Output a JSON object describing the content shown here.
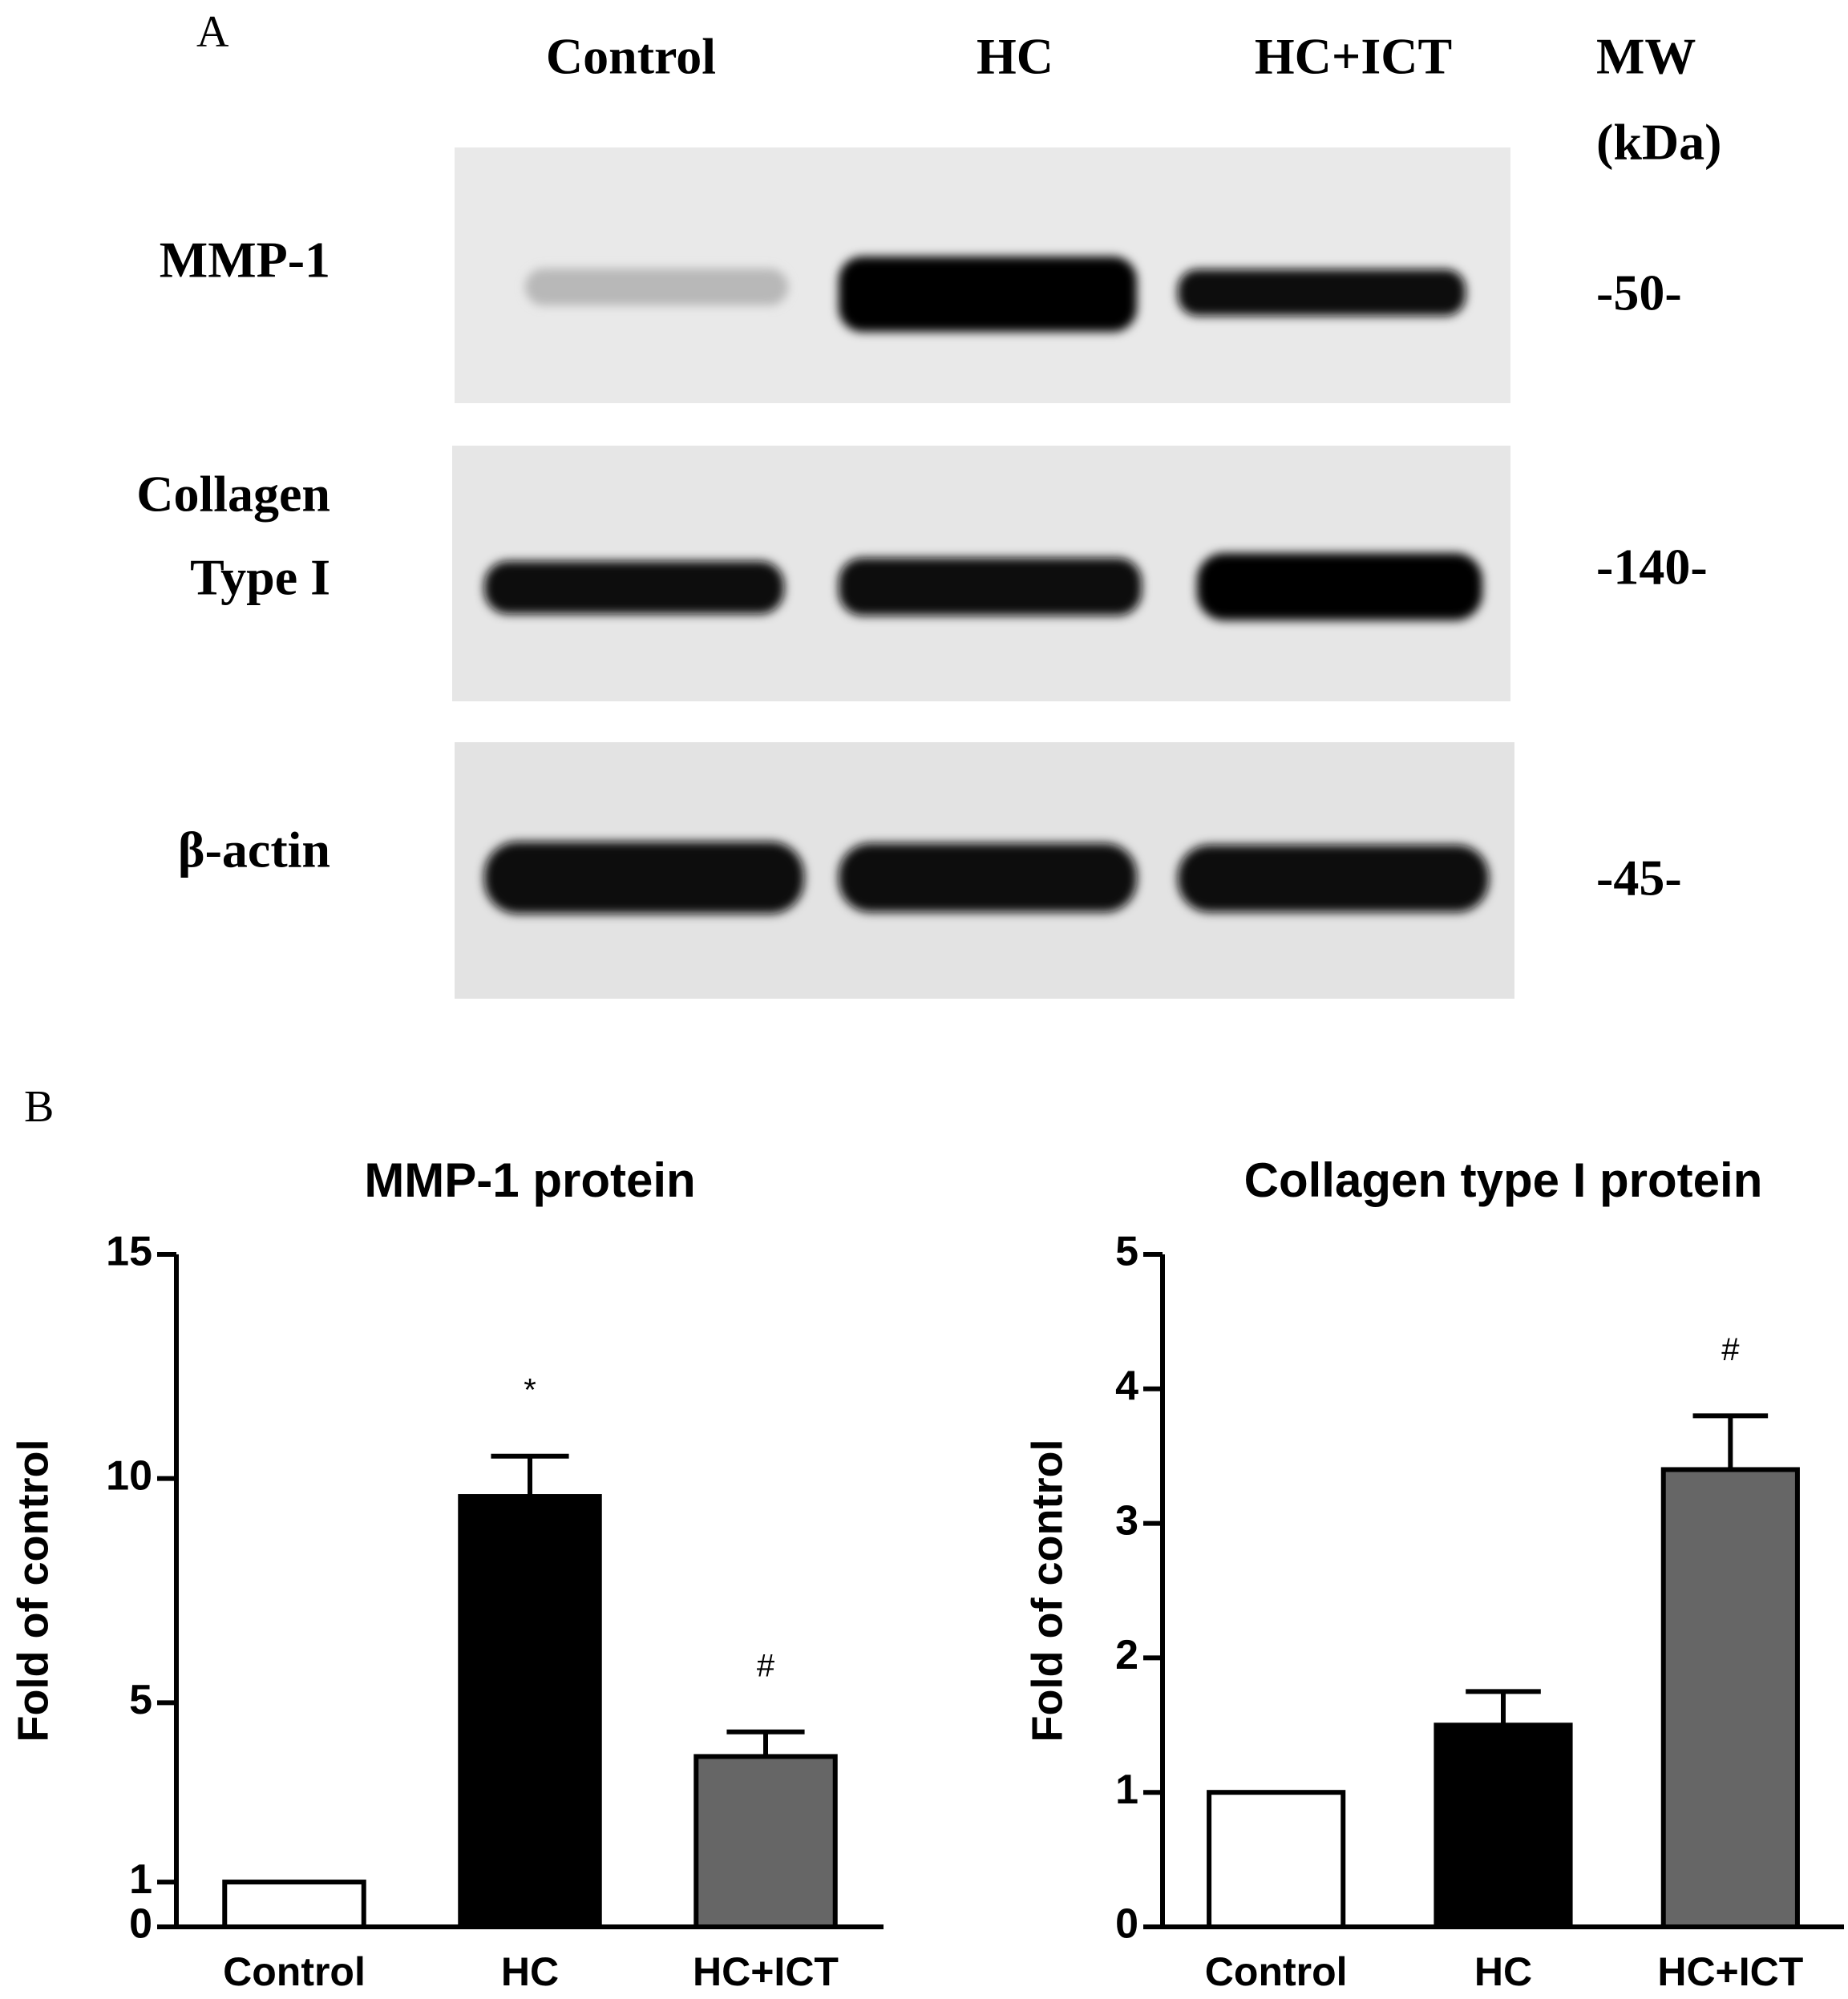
{
  "panel_a": {
    "label": "A",
    "lanes": [
      "Control",
      "HC",
      "HC+ICT"
    ],
    "mw_header": [
      "MW",
      "(kDa)"
    ],
    "rows": [
      {
        "label": [
          "MMP-1"
        ],
        "mw": "-50-"
      },
      {
        "label": [
          "Collagen",
          "Type I"
        ],
        "mw": "-140-"
      },
      {
        "label": [
          "β-actin"
        ],
        "mw": "-45-"
      }
    ]
  },
  "panel_b": {
    "label": "B"
  },
  "chart_data": [
    {
      "type": "bar",
      "title": "MMP-1 protein",
      "ylabel": "Fold of control",
      "categories": [
        "Control",
        "HC",
        "HC+ICT"
      ],
      "values": [
        1,
        9.6,
        3.8
      ],
      "errors": [
        null,
        0.9,
        0.55
      ],
      "annotations": [
        null,
        "*",
        "#"
      ],
      "colors": [
        "#ffffff",
        "#000000",
        "#666666"
      ],
      "ylim": [
        0,
        15
      ],
      "yticks": [
        0,
        1,
        5,
        10,
        15
      ]
    },
    {
      "type": "bar",
      "title": "Collagen type I protein",
      "ylabel": "Fold of control",
      "categories": [
        "Control",
        "HC",
        "HC+ICT"
      ],
      "values": [
        1,
        1.5,
        3.4
      ],
      "errors": [
        null,
        0.25,
        0.4
      ],
      "annotations": [
        null,
        null,
        "#"
      ],
      "colors": [
        "#ffffff",
        "#000000",
        "#666666"
      ],
      "ylim": [
        0,
        5
      ],
      "yticks": [
        0,
        1,
        2,
        3,
        4,
        5
      ]
    }
  ]
}
